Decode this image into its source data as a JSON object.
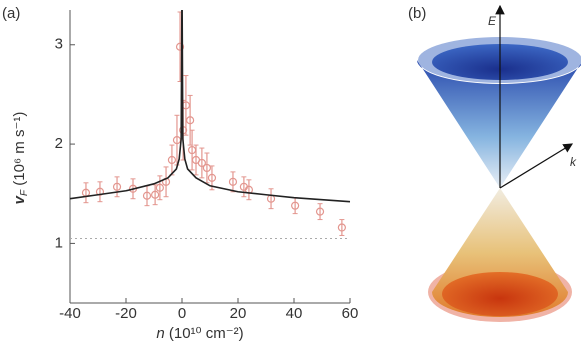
{
  "panel_a": {
    "label": "(a)"
  },
  "chart_data": {
    "type": "scatter",
    "x_label": {
      "symbol": "n",
      "unit": "(10¹⁰ cm⁻²)"
    },
    "y_label": {
      "symbol": "v",
      "subscript": "F",
      "unit": "(10⁶ m s⁻¹)"
    },
    "x": [
      -34.3,
      -29.3,
      -23.2,
      -17.5,
      -12.5,
      -9.6,
      -7.9,
      -5.7,
      -3.6,
      -1.8,
      -0.7,
      0.4,
      1.4,
      2.9,
      3.6,
      5,
      7.1,
      8.9,
      10.7,
      18.2,
      22.1,
      23.9,
      31.8,
      40.4,
      49.3,
      57.1
    ],
    "y": [
      1.51,
      1.52,
      1.57,
      1.55,
      1.48,
      1.49,
      1.56,
      1.62,
      1.84,
      2.04,
      2.98,
      2.14,
      2.39,
      2.24,
      1.94,
      1.84,
      1.81,
      1.76,
      1.66,
      1.62,
      1.57,
      1.54,
      1.45,
      1.38,
      1.32,
      1.16
    ],
    "errors": [
      0.1,
      0.1,
      0.1,
      0.1,
      0.1,
      0.1,
      0.12,
      0.15,
      0.15,
      0.25,
      0.35,
      0.3,
      0.3,
      0.25,
      0.2,
      0.15,
      0.15,
      0.15,
      0.12,
      0.1,
      0.1,
      0.1,
      0.1,
      0.08,
      0.08,
      0.08
    ],
    "color": "#e3968f",
    "curve": {
      "x": [
        -40,
        -30,
        -20,
        -10,
        -5,
        -2,
        -1,
        -0.3,
        -0.05,
        0,
        0.05,
        0.3,
        1,
        2,
        5,
        10,
        20,
        30,
        40,
        60
      ],
      "y": [
        1.45,
        1.49,
        1.53,
        1.6,
        1.66,
        1.75,
        1.85,
        2.05,
        3.35,
        null,
        3.35,
        2.05,
        1.85,
        1.75,
        1.66,
        1.58,
        1.52,
        1.49,
        1.46,
        1.42
      ],
      "color": "#222222"
    },
    "reference_line": {
      "y": 1.05,
      "color": "#aaaaaa"
    },
    "xlim": [
      -40,
      60
    ],
    "ylim": [
      0.4,
      3.35
    ],
    "xticks": [
      -40,
      -20,
      0,
      20,
      40,
      60
    ],
    "yticks": [
      1,
      2,
      3
    ]
  },
  "panel_b": {
    "label": "(b)",
    "energy_label": "E",
    "momentum_label": "k"
  }
}
